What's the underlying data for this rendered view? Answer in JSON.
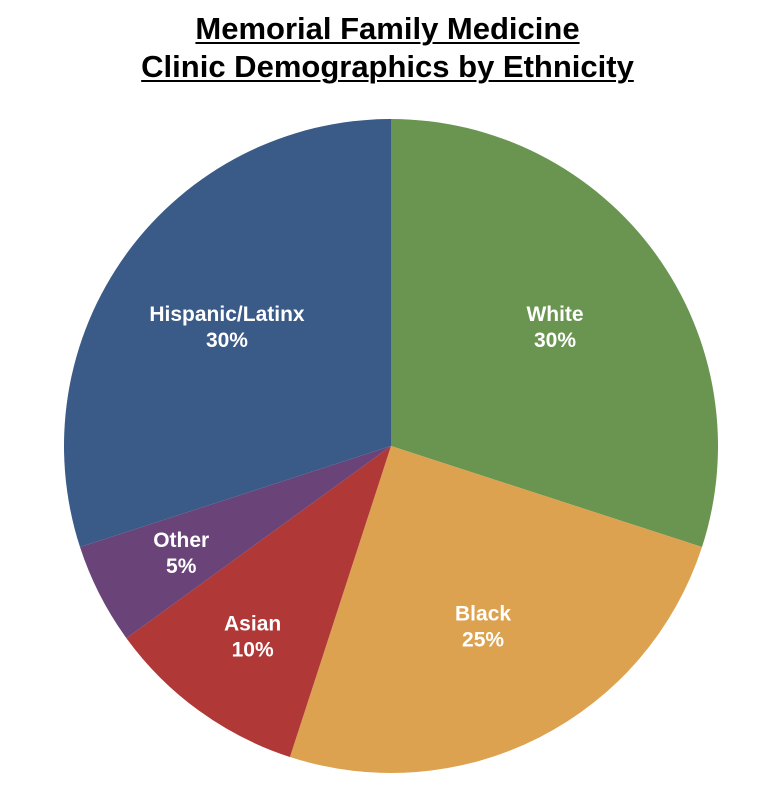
{
  "chart_data": {
    "type": "pie",
    "title_lines": [
      "Memorial Family Medicine",
      "Clinic Demographics by Ethnicity"
    ],
    "slices": [
      {
        "name": "White",
        "value": 30,
        "label": "30%",
        "color": "#6a9550"
      },
      {
        "name": "Black",
        "value": 25,
        "label": "25%",
        "color": "#dca24f"
      },
      {
        "name": "Asian",
        "value": 10,
        "label": "10%",
        "color": "#b03836"
      },
      {
        "name": "Other",
        "value": 5,
        "label": "5%",
        "color": "#6a4478"
      },
      {
        "name": "Hispanic/Latinx",
        "value": 30,
        "label": "30%",
        "color": "#3a5a87"
      }
    ],
    "start_angle": "12 o'clock",
    "direction": "clockwise"
  }
}
